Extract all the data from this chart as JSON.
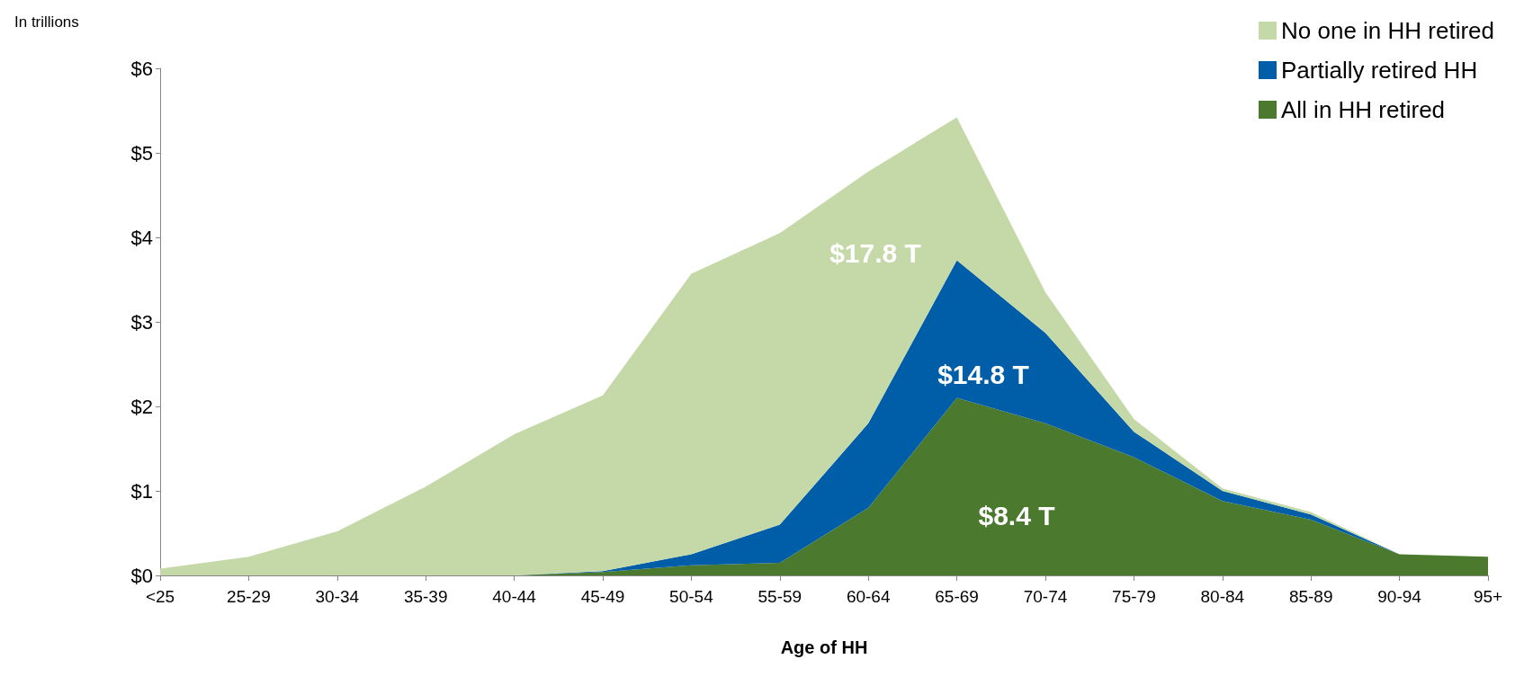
{
  "chart_data": {
    "type": "area",
    "stacked": true,
    "ylabel": "In trillions",
    "xlabel": "Age of HH",
    "categories": [
      "<25",
      "25-29",
      "30-34",
      "35-39",
      "40-44",
      "45-49",
      "50-54",
      "55-59",
      "60-64",
      "65-69",
      "70-74",
      "75-79",
      "80-84",
      "85-89",
      "90-94",
      "95+"
    ],
    "series": [
      {
        "name": "All in HH retired",
        "color": "#4b7a2e",
        "values": [
          0,
          0,
          0,
          0,
          0,
          0.04,
          0.12,
          0.15,
          0.8,
          2.1,
          1.8,
          1.4,
          0.88,
          0.66,
          0.25,
          0.22
        ]
      },
      {
        "name": "Partially retired HH",
        "color": "#005ea8",
        "values": [
          0,
          0,
          0,
          0,
          0,
          0.01,
          0.13,
          0.45,
          1.0,
          1.63,
          1.07,
          0.3,
          0.12,
          0.06,
          0,
          0
        ]
      },
      {
        "name": "No one in HH retired",
        "color": "#c5d9a8",
        "values": [
          0.08,
          0.22,
          0.52,
          1.05,
          1.67,
          2.08,
          3.32,
          3.45,
          2.98,
          1.69,
          0.48,
          0.15,
          0.03,
          0.03,
          0,
          0
        ]
      }
    ],
    "ylim": [
      0,
      6
    ],
    "yticks": [
      {
        "value": 0,
        "label": "$0"
      },
      {
        "value": 1,
        "label": "$1"
      },
      {
        "value": 2,
        "label": "$2"
      },
      {
        "value": 3,
        "label": "$3"
      },
      {
        "value": 4,
        "label": "$4"
      },
      {
        "value": 5,
        "label": "$5"
      },
      {
        "value": 6,
        "label": "$6"
      }
    ],
    "grid": false,
    "legend": "top right",
    "marker": "none",
    "annotations": [
      "$17.8 T",
      "$14.8 T",
      "$8.4 T"
    ]
  }
}
